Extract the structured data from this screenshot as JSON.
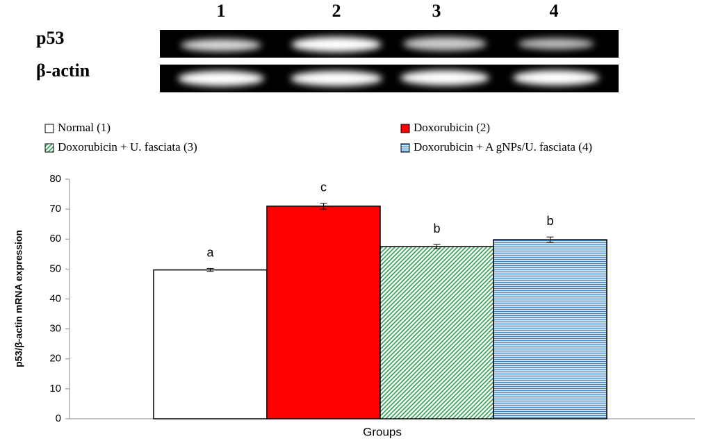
{
  "gel": {
    "lanes": [
      "1",
      "2",
      "3",
      "4"
    ],
    "rows": [
      "p53",
      "β-actin"
    ]
  },
  "chart_data": {
    "type": "bar",
    "ylabel": "p53/β-actin mRNA expression",
    "xlabel": "Groups",
    "ylim": [
      0,
      80
    ],
    "yticks": [
      0,
      10,
      20,
      30,
      40,
      50,
      60,
      70,
      80
    ],
    "series": [
      {
        "name": "Normal (1)",
        "color": "#ffffff",
        "pattern": "solid",
        "values": [
          49.7
        ],
        "errors": [
          0.5
        ],
        "annotations": [
          "a"
        ]
      },
      {
        "name": "Doxorubicin (2)",
        "color": "#ff0000",
        "pattern": "solid",
        "values": [
          71
        ],
        "errors": [
          1
        ],
        "annotations": [
          "c"
        ]
      },
      {
        "name": "Doxorubicin + U. fasciata (3)",
        "color": "#2e9e4f",
        "pattern": "diagonal",
        "values": [
          57.5
        ],
        "errors": [
          0.7
        ],
        "annotations": [
          "b"
        ]
      },
      {
        "name": "Doxorubicin + A gNPs/U. fasciata (4)",
        "color": "#3a7fc0",
        "pattern": "horizontal",
        "values": [
          59.8
        ],
        "errors": [
          0.9
        ],
        "annotations": [
          "b"
        ]
      }
    ]
  }
}
